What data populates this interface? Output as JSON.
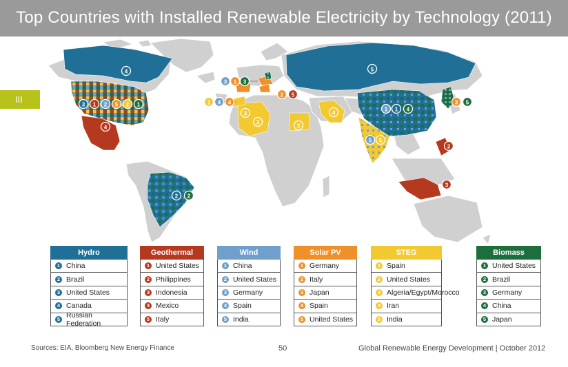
{
  "title": "Top Countries with Installed Renewable Electricity by Technology (2011)",
  "section_marker": "III",
  "legend": [
    {
      "tech": "Hydro",
      "color": "#1f6f96",
      "countries": [
        "China",
        "Brazil",
        "United States",
        "Canada",
        "Russian Federation"
      ]
    },
    {
      "tech": "Geothermal",
      "color": "#b5391e",
      "countries": [
        "United States",
        "Philippines",
        "Indonesia",
        "Mexico",
        "Italy"
      ]
    },
    {
      "tech": "Wind",
      "color": "#6f9fcb",
      "countries": [
        "China",
        "United States",
        "Germany",
        "Spain",
        "India"
      ]
    },
    {
      "tech": "Solar PV",
      "color": "#f0902a",
      "countries": [
        "Germany",
        "Italy",
        "Japan",
        "Spain",
        "United States"
      ]
    },
    {
      "tech": "STEG",
      "color": "#f3c931",
      "countries": [
        "Spain",
        "United States",
        "Algeria/Egypt/Morocco",
        "Iran",
        "India"
      ]
    },
    {
      "tech": "Biomass",
      "color": "#1c6f3a",
      "countries": [
        "United States",
        "Brazil",
        "Germany",
        "China",
        "Japan"
      ]
    }
  ],
  "map_markers": [
    {
      "label": "4",
      "color": "#1f6f96"
    },
    {
      "label": "5",
      "color": "#1f6f96"
    },
    {
      "label": "3",
      "color": "#1f6f96"
    },
    {
      "label": "1",
      "color": "#b5391e"
    },
    {
      "label": "2",
      "color": "#6f9fcb"
    },
    {
      "label": "5",
      "color": "#f0902a"
    },
    {
      "label": "2",
      "color": "#f3c931"
    },
    {
      "label": "1",
      "color": "#1c6f3a"
    },
    {
      "label": "4",
      "color": "#b5391e"
    },
    {
      "label": "2",
      "color": "#1f6f96"
    },
    {
      "label": "2",
      "color": "#1c6f3a"
    },
    {
      "label": "3",
      "color": "#6f9fcb"
    },
    {
      "label": "1",
      "color": "#f0902a"
    },
    {
      "label": "3",
      "color": "#1c6f3a"
    },
    {
      "label": "1",
      "color": "#f3c931"
    },
    {
      "label": "4",
      "color": "#6f9fcb"
    },
    {
      "label": "4",
      "color": "#f0902a"
    },
    {
      "label": "2",
      "color": "#f0902a"
    },
    {
      "label": "5",
      "color": "#b5391e"
    },
    {
      "label": "3",
      "color": "#f3c931"
    },
    {
      "label": "3",
      "color": "#f3c931"
    },
    {
      "label": "3",
      "color": "#f3c931"
    },
    {
      "label": "4",
      "color": "#f3c931"
    },
    {
      "label": "1",
      "color": "#6f9fcb"
    },
    {
      "label": "1",
      "color": "#1f6f96"
    },
    {
      "label": "4",
      "color": "#1c6f3a"
    },
    {
      "label": "5",
      "color": "#6f9fcb"
    },
    {
      "label": "5",
      "color": "#f3c931"
    },
    {
      "label": "3",
      "color": "#f0902a"
    },
    {
      "label": "5",
      "color": "#1c6f3a"
    },
    {
      "label": "2",
      "color": "#b5391e"
    },
    {
      "label": "3",
      "color": "#b5391e"
    }
  ],
  "footer": {
    "sources": "Sources: EIA, Bloomberg New Energy Finance",
    "page": "50",
    "report": "Global Renewable Energy Development  |  October 2012"
  }
}
